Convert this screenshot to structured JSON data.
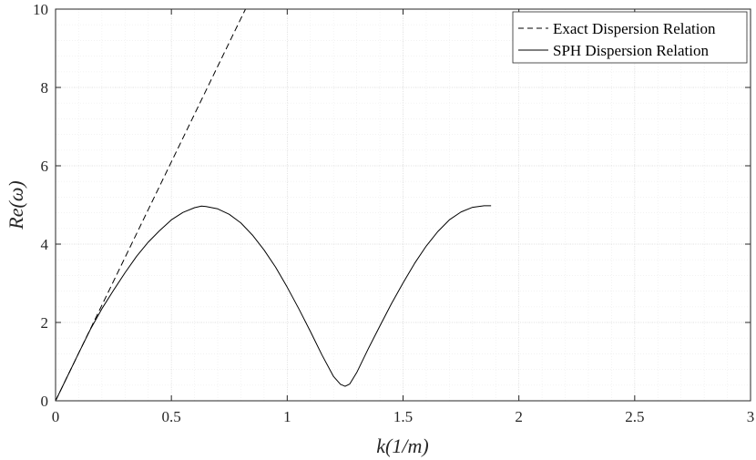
{
  "chart_data": {
    "type": "line",
    "xlabel": "k(1/m)",
    "ylabel": "Re(ω)",
    "xlim": [
      0,
      3
    ],
    "ylim": [
      0,
      10
    ],
    "xticks": [
      0,
      0.5,
      1,
      1.5,
      2,
      2.5,
      3
    ],
    "xtick_labels": [
      "0",
      "0.5",
      "1",
      "1.5",
      "2",
      "2.5",
      "3"
    ],
    "yticks": [
      0,
      2,
      4,
      6,
      8,
      10
    ],
    "ytick_labels": [
      "0",
      "2",
      "4",
      "6",
      "8",
      "10"
    ],
    "grid": "on (major and minor, dotted)",
    "legend_position": "top-right",
    "series": [
      {
        "name": "Exact Dispersion Relation",
        "style": "dashed",
        "color": "#000000",
        "x": [
          0,
          0.1,
          0.2,
          0.3,
          0.4,
          0.5,
          0.6,
          0.7,
          0.8,
          0.82
        ],
        "y": [
          0,
          1.22,
          2.44,
          3.66,
          4.88,
          6.1,
          7.32,
          8.54,
          9.76,
          10.0
        ]
      },
      {
        "name": "SPH Dispersion Relation",
        "style": "solid",
        "color": "#000000",
        "x": [
          0,
          0.05,
          0.1,
          0.15,
          0.2,
          0.25,
          0.3,
          0.35,
          0.4,
          0.45,
          0.5,
          0.55,
          0.6,
          0.63,
          0.65,
          0.7,
          0.75,
          0.8,
          0.85,
          0.9,
          0.95,
          1.0,
          1.05,
          1.1,
          1.15,
          1.2,
          1.23,
          1.25,
          1.27,
          1.3,
          1.35,
          1.4,
          1.45,
          1.5,
          1.55,
          1.6,
          1.65,
          1.7,
          1.75,
          1.8,
          1.85,
          1.88
        ],
        "y": [
          0,
          0.61,
          1.22,
          1.82,
          2.35,
          2.82,
          3.27,
          3.69,
          4.05,
          4.35,
          4.62,
          4.81,
          4.93,
          4.97,
          4.96,
          4.9,
          4.76,
          4.54,
          4.23,
          3.85,
          3.41,
          2.9,
          2.35,
          1.77,
          1.17,
          0.62,
          0.42,
          0.37,
          0.43,
          0.72,
          1.33,
          1.91,
          2.48,
          3.01,
          3.51,
          3.95,
          4.32,
          4.62,
          4.82,
          4.94,
          4.98,
          4.98
        ]
      }
    ]
  },
  "colors": {
    "background": "#ffffff",
    "axis": "#262626",
    "grid_major": "#d9d9d9",
    "grid_minor": "#ececec",
    "line": "#000000"
  }
}
